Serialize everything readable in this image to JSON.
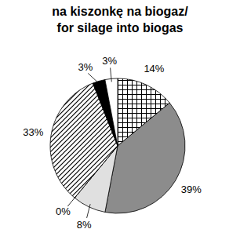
{
  "chart_data": {
    "type": "pie",
    "title": "na kiszonkę na biogaz/",
    "subtitle": "for silage into biogas",
    "values": [
      14,
      39,
      8,
      0,
      33,
      3,
      3
    ],
    "value_labels": [
      "14%",
      "39%",
      "8%",
      "0%",
      "33%",
      "3%",
      "3%"
    ],
    "colors": [
      "#ffffff",
      "#8c8c8c",
      "#e0e0e0",
      "#ffffff",
      "#ffffff",
      "#000000",
      "#ffffff"
    ],
    "data_labels": true
  }
}
